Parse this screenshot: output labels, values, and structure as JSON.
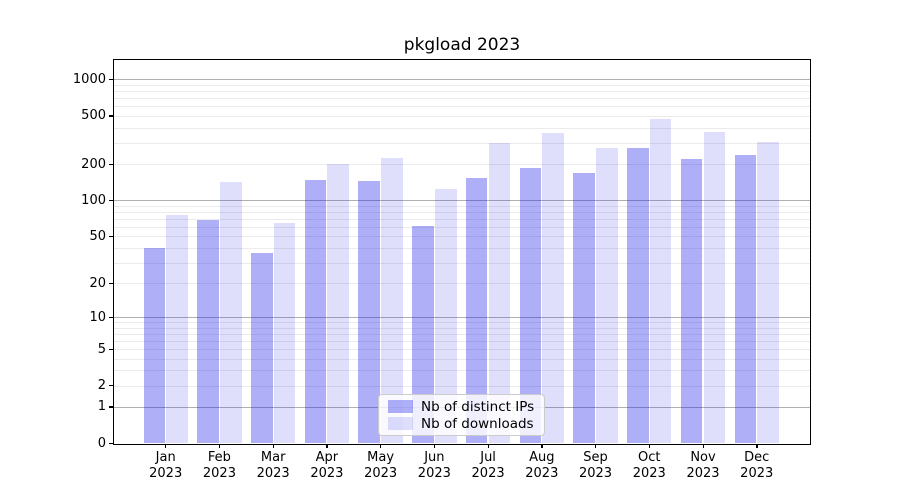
{
  "chart_data": {
    "type": "bar",
    "title": "pkgload 2023",
    "categories": [
      "Jan 2023",
      "Feb 2023",
      "Mar 2023",
      "Apr 2023",
      "May 2023",
      "Jun 2023",
      "Jul 2023",
      "Aug 2023",
      "Sep 2023",
      "Oct 2023",
      "Nov 2023",
      "Dec 2023"
    ],
    "series": [
      {
        "name": "Nb of distinct IPs",
        "color": "rgba(25,25,235,0.35)",
        "values": [
          40,
          69,
          36,
          148,
          146,
          61,
          154,
          184,
          167,
          271,
          220,
          236
        ]
      },
      {
        "name": "Nb of downloads",
        "color": "rgba(25,25,235,0.14)",
        "values": [
          75,
          141,
          65,
          199,
          223,
          124,
          296,
          363,
          271,
          468,
          366,
          302
        ]
      }
    ],
    "xlabel": "",
    "ylabel": "",
    "yscale": "log1p",
    "ylim": [
      0,
      1450
    ],
    "yticks": [
      0,
      1,
      2,
      5,
      10,
      20,
      50,
      100,
      200,
      500,
      1000
    ],
    "grid": "both",
    "grid_major_at": [
      1,
      10,
      100,
      1000
    ],
    "legend_position": "lower center",
    "colors": {
      "bar_distinct_ips": "#abaaf6",
      "bar_downloads": "#dcdcfc",
      "grid_major": "#b0b0b0",
      "grid_minor": "#ebebeb",
      "axis": "#000000"
    }
  }
}
